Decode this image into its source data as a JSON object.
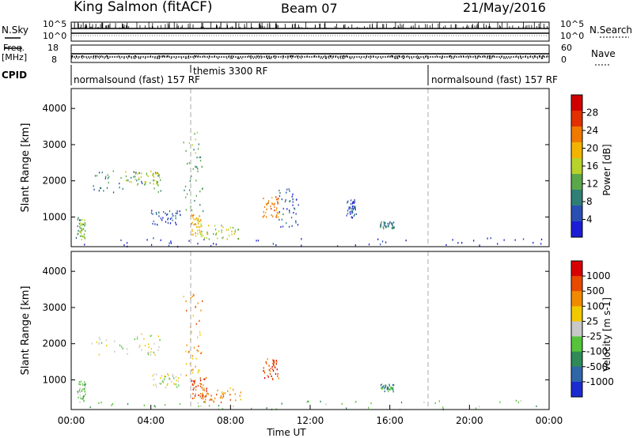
{
  "header": {
    "station": "King Salmon (fitACF)",
    "beam": "Beam 07",
    "date": "21/May/2016"
  },
  "status_panel": {
    "nsky_label": "N.Sky",
    "nsky_ticks": [
      "10^5",
      "10^0"
    ],
    "nsearch_label": "N.Search",
    "nsearch_ticks": [
      "10^5",
      "10^0"
    ],
    "freq_label": "Freq.",
    "freq_unit": "[MHz]",
    "freq_ticks": [
      "18",
      "8"
    ],
    "nave_label": "Nave",
    "nave_ticks": [
      "60",
      "0"
    ],
    "cpid_label": "CPID",
    "cpid_segments": [
      {
        "label": "normalsound (fast) 157 RF",
        "start": 0,
        "end": 6
      },
      {
        "label": "themis 3300 RF",
        "start": 6,
        "end": 18
      },
      {
        "label": "normalsound (fast) 157 RF",
        "start": 18,
        "end": 24
      }
    ]
  },
  "chart_data": [
    {
      "type": "heatmap",
      "name": "power",
      "ylabel": "Slant Range [km]",
      "ylim": [
        180,
        4550
      ],
      "yticks": [
        1000,
        2000,
        3000,
        4000
      ],
      "xlim": [
        0,
        24
      ],
      "colorbar": {
        "label": "Power [dB]",
        "ticks": [
          "28",
          "24",
          "20",
          "16",
          "12",
          "8",
          "4"
        ],
        "colors": [
          "#1c1cd6",
          "#2a4fb3",
          "#2f7f77",
          "#5aa84a",
          "#b7d22a",
          "#f2b400",
          "#f07a00",
          "#e23000",
          "#d10000"
        ]
      },
      "echo_regions": [
        {
          "t": [
            0.3,
            0.7
          ],
          "r": [
            400,
            1000
          ],
          "level": 3
        },
        {
          "t": [
            1.0,
            4.5
          ],
          "r": [
            1700,
            2300
          ],
          "level": 2
        },
        {
          "t": [
            2.5,
            4.5
          ],
          "r": [
            1900,
            2300
          ],
          "level": 4
        },
        {
          "t": [
            4.0,
            5.5
          ],
          "r": [
            800,
            1200
          ],
          "level": 1
        },
        {
          "t": [
            5.6,
            6.6
          ],
          "r": [
            1100,
            3400
          ],
          "level": 3
        },
        {
          "t": [
            6.0,
            6.5
          ],
          "r": [
            500,
            1100
          ],
          "level": 5
        },
        {
          "t": [
            6.5,
            8.5
          ],
          "r": [
            400,
            800
          ],
          "level": 4
        },
        {
          "t": [
            9.6,
            10.4
          ],
          "r": [
            1000,
            1600
          ],
          "level": 6
        },
        {
          "t": [
            10.4,
            11.4
          ],
          "r": [
            700,
            1800
          ],
          "level": 1
        },
        {
          "t": [
            13.8,
            14.3
          ],
          "r": [
            1000,
            1500
          ],
          "level": 1
        },
        {
          "t": [
            15.5,
            16.2
          ],
          "r": [
            700,
            900
          ],
          "level": 2
        },
        {
          "t": [
            0,
            24
          ],
          "r": [
            200,
            450
          ],
          "level": 0
        }
      ]
    },
    {
      "type": "heatmap",
      "name": "velocity",
      "ylabel": "Slant Range [km]",
      "ylim": [
        180,
        4550
      ],
      "yticks": [
        1000,
        2000,
        3000,
        4000
      ],
      "xlim": [
        0,
        24
      ],
      "xticks": [
        "00:00",
        "04:00",
        "08:00",
        "12:00",
        "16:00",
        "20:00",
        "00:00"
      ],
      "xlabel": "Time UT",
      "colorbar": {
        "label": "Velocity [m s-1]",
        "ticks": [
          "1000",
          "500",
          "100",
          "25",
          "-25",
          "-100",
          "-500",
          "-1000"
        ],
        "colors": [
          "#1c2bd0",
          "#2f66a7",
          "#2f8a57",
          "#56c43a",
          "#c8c8c8",
          "#f2c800",
          "#f08a00",
          "#e84a00",
          "#d80000"
        ]
      },
      "echo_regions": [
        {
          "t": [
            0.3,
            0.7
          ],
          "r": [
            400,
            1000
          ],
          "level": 3
        },
        {
          "t": [
            1.0,
            4.5
          ],
          "r": [
            1700,
            2300
          ],
          "level": 4
        },
        {
          "t": [
            4.0,
            5.5
          ],
          "r": [
            800,
            1200
          ],
          "level": 4
        },
        {
          "t": [
            5.6,
            6.6
          ],
          "r": [
            1100,
            3500
          ],
          "level": 6
        },
        {
          "t": [
            6.0,
            6.8
          ],
          "r": [
            500,
            1100
          ],
          "level": 7
        },
        {
          "t": [
            6.5,
            8.5
          ],
          "r": [
            400,
            800
          ],
          "level": 6
        },
        {
          "t": [
            9.6,
            10.4
          ],
          "r": [
            1000,
            1600
          ],
          "level": 7
        },
        {
          "t": [
            15.5,
            16.2
          ],
          "r": [
            700,
            900
          ],
          "level": 2
        },
        {
          "t": [
            0,
            24
          ],
          "r": [
            200,
            450
          ],
          "level": 3
        }
      ]
    }
  ]
}
